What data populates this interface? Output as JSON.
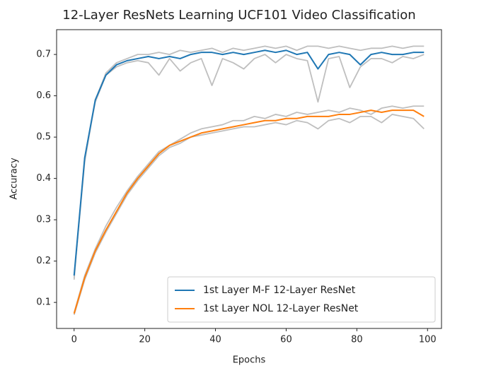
{
  "chart_data": {
    "type": "line",
    "title": "12-Layer ResNets Learning UCF101 Video Classification",
    "xlabel": "Epochs",
    "ylabel": "Accuracy",
    "x": [
      0,
      3,
      6,
      9,
      12,
      15,
      18,
      21,
      24,
      27,
      30,
      33,
      36,
      39,
      42,
      45,
      48,
      51,
      54,
      57,
      60,
      63,
      66,
      69,
      72,
      75,
      78,
      81,
      84,
      87,
      90,
      93,
      96,
      99
    ],
    "xlim": [
      -4.95,
      103.95
    ],
    "xticks": [
      0,
      20,
      40,
      60,
      80,
      100
    ],
    "ylim": [
      0.037,
      0.76
    ],
    "yticks": [
      0.1,
      0.2,
      0.3,
      0.4,
      0.5,
      0.6,
      0.7
    ],
    "legend": "lower right",
    "series": [
      {
        "color": "#bfbfbf",
        "values": [
          0.16,
          0.44,
          0.59,
          0.655,
          0.68,
          0.69,
          0.7,
          0.7,
          0.705,
          0.7,
          0.71,
          0.705,
          0.71,
          0.715,
          0.705,
          0.715,
          0.71,
          0.715,
          0.72,
          0.715,
          0.72,
          0.71,
          0.72,
          0.72,
          0.715,
          0.72,
          0.715,
          0.71,
          0.715,
          0.715,
          0.72,
          0.715,
          0.72,
          0.72
        ]
      },
      {
        "color": "#bfbfbf",
        "values": [
          0.155,
          0.45,
          0.585,
          0.65,
          0.67,
          0.68,
          0.685,
          0.68,
          0.65,
          0.69,
          0.66,
          0.68,
          0.69,
          0.625,
          0.69,
          0.68,
          0.665,
          0.69,
          0.7,
          0.68,
          0.7,
          0.69,
          0.685,
          0.585,
          0.69,
          0.695,
          0.62,
          0.67,
          0.69,
          0.69,
          0.68,
          0.695,
          0.69,
          0.7
        ]
      },
      {
        "color": "#bfbfbf",
        "values": [
          0.075,
          0.165,
          0.23,
          0.285,
          0.33,
          0.37,
          0.405,
          0.435,
          0.465,
          0.48,
          0.495,
          0.51,
          0.52,
          0.525,
          0.53,
          0.54,
          0.54,
          0.55,
          0.545,
          0.555,
          0.55,
          0.56,
          0.555,
          0.56,
          0.565,
          0.56,
          0.57,
          0.565,
          0.555,
          0.57,
          0.575,
          0.57,
          0.575,
          0.575
        ]
      },
      {
        "color": "#bfbfbf",
        "values": [
          0.07,
          0.155,
          0.22,
          0.27,
          0.315,
          0.36,
          0.395,
          0.425,
          0.455,
          0.475,
          0.485,
          0.5,
          0.505,
          0.51,
          0.515,
          0.52,
          0.525,
          0.525,
          0.53,
          0.535,
          0.53,
          0.54,
          0.535,
          0.52,
          0.54,
          0.545,
          0.535,
          0.55,
          0.55,
          0.535,
          0.555,
          0.55,
          0.545,
          0.52
        ]
      },
      {
        "name": "1st Layer M-F 12-Layer ResNet",
        "color": "#1f77b4",
        "values": [
          0.165,
          0.45,
          0.59,
          0.65,
          0.675,
          0.685,
          0.69,
          0.695,
          0.69,
          0.695,
          0.69,
          0.7,
          0.705,
          0.705,
          0.7,
          0.705,
          0.7,
          0.705,
          0.71,
          0.705,
          0.71,
          0.7,
          0.705,
          0.665,
          0.7,
          0.705,
          0.7,
          0.675,
          0.7,
          0.705,
          0.7,
          0.7,
          0.705,
          0.705
        ]
      },
      {
        "name": "1st Layer NOL 12-Layer ResNet",
        "color": "#ff7f0e",
        "values": [
          0.073,
          0.16,
          0.225,
          0.275,
          0.32,
          0.365,
          0.4,
          0.43,
          0.46,
          0.48,
          0.49,
          0.5,
          0.51,
          0.515,
          0.52,
          0.525,
          0.53,
          0.535,
          0.54,
          0.54,
          0.545,
          0.545,
          0.55,
          0.55,
          0.55,
          0.555,
          0.555,
          0.56,
          0.565,
          0.56,
          0.565,
          0.565,
          0.565,
          0.55
        ]
      }
    ]
  }
}
